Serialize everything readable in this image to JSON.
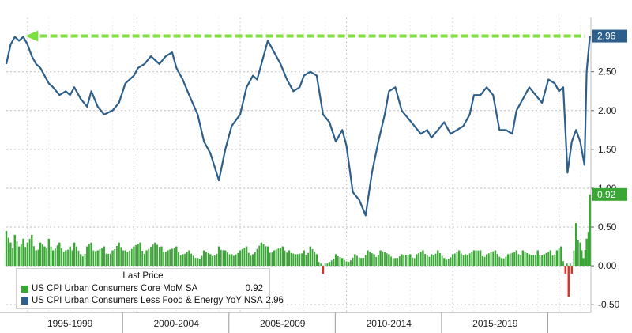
{
  "chart_data": {
    "type": "line",
    "xlabel": "",
    "ylabel": "",
    "grid": true,
    "x_categories": [
      "1995-1999",
      "2000-2004",
      "2005-2009",
      "2010-2014",
      "2015-2019"
    ],
    "xlim": [
      1994.0,
      2021.5
    ],
    "ylim": [
      -0.6,
      3.2
    ],
    "y_ticks": [
      "2.50",
      "2.00",
      "1.50",
      "1.00",
      "0.50",
      "0.00",
      "-0.50"
    ],
    "legend": {
      "title": "Last Price",
      "placement": "bottom-left",
      "items": [
        {
          "name": "US CPI Urban Consumers Core MoM SA",
          "value": "0.92",
          "color": "#3aa635"
        },
        {
          "name": "US CPI Urban Consumers Less Food & Energy YoY NSA",
          "value": "2.96",
          "color": "#2e5f8a"
        }
      ]
    },
    "badges": [
      {
        "text": "2.96",
        "color": "#2e5f8a"
      },
      {
        "text": "0.92",
        "color": "#3aa635"
      }
    ],
    "annotation": {
      "type": "horizontal-arrow",
      "level": 2.96,
      "color": "#7ee040"
    },
    "series": [
      {
        "name": "US CPI Urban Consumers Less Food & Energy YoY NSA",
        "color": "#2e5f8a",
        "x": [
          1994.0,
          1994.2,
          1994.4,
          1994.6,
          1994.8,
          1995.0,
          1995.2,
          1995.4,
          1995.6,
          1995.8,
          1996.0,
          1996.2,
          1996.5,
          1996.8,
          1997.0,
          1997.2,
          1997.5,
          1997.8,
          1998.0,
          1998.3,
          1998.6,
          1999.0,
          1999.3,
          1999.6,
          2000.0,
          2000.2,
          2000.5,
          2000.8,
          2001.0,
          2001.2,
          2001.5,
          2001.8,
          2002.0,
          2002.3,
          2002.6,
          2003.0,
          2003.3,
          2003.6,
          2004.0,
          2004.3,
          2004.6,
          2005.0,
          2005.3,
          2005.6,
          2005.8,
          2006.0,
          2006.3,
          2006.6,
          2006.9,
          2007.2,
          2007.5,
          2007.8,
          2008.0,
          2008.3,
          2008.6,
          2008.9,
          2009.2,
          2009.5,
          2009.8,
          2010.0,
          2010.3,
          2010.6,
          2010.9,
          2011.2,
          2011.5,
          2011.8,
          2012.0,
          2012.3,
          2012.6,
          2012.9,
          2013.2,
          2013.5,
          2013.8,
          2014.0,
          2014.3,
          2014.6,
          2014.9,
          2015.2,
          2015.5,
          2015.8,
          2016.0,
          2016.3,
          2016.6,
          2016.9,
          2017.2,
          2017.5,
          2017.8,
          2018.0,
          2018.3,
          2018.6,
          2018.9,
          2019.2,
          2019.5,
          2019.8,
          2020.0,
          2020.2,
          2020.4,
          2020.6,
          2020.8,
          2021.0,
          2021.2,
          2021.3,
          2021.45
        ],
        "y": [
          2.6,
          2.85,
          2.95,
          2.9,
          2.95,
          2.85,
          2.7,
          2.6,
          2.55,
          2.45,
          2.35,
          2.3,
          2.2,
          2.25,
          2.2,
          2.3,
          2.15,
          2.05,
          2.25,
          2.05,
          1.95,
          2.0,
          2.1,
          2.35,
          2.45,
          2.55,
          2.6,
          2.7,
          2.65,
          2.6,
          2.7,
          2.75,
          2.55,
          2.4,
          2.2,
          1.95,
          1.6,
          1.45,
          1.1,
          1.5,
          1.8,
          1.95,
          2.3,
          2.45,
          2.4,
          2.6,
          2.9,
          2.75,
          2.6,
          2.4,
          2.25,
          2.3,
          2.45,
          2.5,
          2.45,
          1.95,
          1.85,
          1.6,
          1.75,
          1.55,
          0.95,
          0.85,
          0.65,
          1.2,
          1.6,
          1.95,
          2.25,
          2.3,
          2.0,
          1.9,
          1.8,
          1.7,
          1.75,
          1.65,
          1.75,
          1.85,
          1.7,
          1.75,
          1.8,
          1.95,
          2.2,
          2.2,
          2.3,
          2.2,
          1.75,
          1.75,
          1.7,
          2.0,
          2.15,
          2.3,
          2.2,
          2.1,
          2.4,
          2.35,
          2.25,
          2.3,
          1.2,
          1.6,
          1.75,
          1.6,
          1.3,
          2.5,
          2.96
        ]
      },
      {
        "name": "US CPI Urban Consumers Core MoM SA",
        "type": "bar",
        "color": "#3aa635",
        "negative_color": "#d93025",
        "x": [
          1994.0,
          1994.2,
          1994.4,
          1994.6,
          1994.8,
          1995.0,
          1995.2,
          1995.4,
          1995.6,
          1995.8,
          1996.0,
          1996.2,
          1996.5,
          1996.8,
          1997.0,
          1997.2,
          1997.5,
          1997.8,
          1998.0,
          1998.3,
          1998.6,
          1999.0,
          1999.3,
          1999.6,
          2000.0,
          2000.3,
          2000.6,
          2001.0,
          2001.3,
          2001.6,
          2002.0,
          2002.3,
          2002.6,
          2003.0,
          2003.3,
          2003.6,
          2004.0,
          2004.3,
          2004.6,
          2005.0,
          2005.3,
          2005.6,
          2006.0,
          2006.3,
          2006.6,
          2007.0,
          2007.3,
          2007.6,
          2008.0,
          2008.3,
          2008.6,
          2008.9,
          2009.2,
          2009.5,
          2009.8,
          2010.1,
          2010.4,
          2010.7,
          2011.0,
          2011.3,
          2011.6,
          2012.0,
          2012.3,
          2012.6,
          2013.0,
          2013.3,
          2013.6,
          2014.0,
          2014.3,
          2014.6,
          2015.0,
          2015.3,
          2015.6,
          2016.0,
          2016.3,
          2016.6,
          2017.0,
          2017.3,
          2017.6,
          2018.0,
          2018.3,
          2018.6,
          2019.0,
          2019.3,
          2019.6,
          2019.9,
          2020.1,
          2020.3,
          2020.45,
          2020.6,
          2020.8,
          2021.0,
          2021.15,
          2021.3,
          2021.45
        ],
        "y": [
          0.45,
          0.3,
          0.4,
          0.25,
          0.35,
          0.3,
          0.4,
          0.2,
          0.3,
          0.25,
          0.35,
          0.2,
          0.3,
          0.2,
          0.25,
          0.3,
          0.15,
          0.25,
          0.3,
          0.2,
          0.25,
          0.2,
          0.3,
          0.2,
          0.25,
          0.3,
          0.2,
          0.3,
          0.25,
          0.2,
          0.25,
          0.15,
          0.2,
          0.1,
          0.2,
          0.15,
          0.25,
          0.2,
          0.15,
          0.2,
          0.25,
          0.15,
          0.3,
          0.25,
          0.2,
          0.25,
          0.2,
          0.15,
          0.2,
          0.25,
          0.15,
          -0.1,
          0.05,
          0.15,
          0.1,
          0.05,
          0.15,
          0.1,
          0.2,
          0.15,
          0.2,
          0.15,
          0.1,
          0.15,
          0.15,
          0.15,
          0.2,
          0.15,
          0.2,
          0.1,
          0.15,
          0.2,
          0.15,
          0.2,
          0.2,
          0.15,
          0.2,
          0.1,
          0.15,
          0.2,
          0.2,
          0.15,
          0.2,
          0.15,
          0.2,
          0.2,
          0.25,
          -0.1,
          -0.4,
          -0.1,
          0.55,
          0.3,
          0.1,
          0.35,
          0.92
        ]
      }
    ]
  }
}
